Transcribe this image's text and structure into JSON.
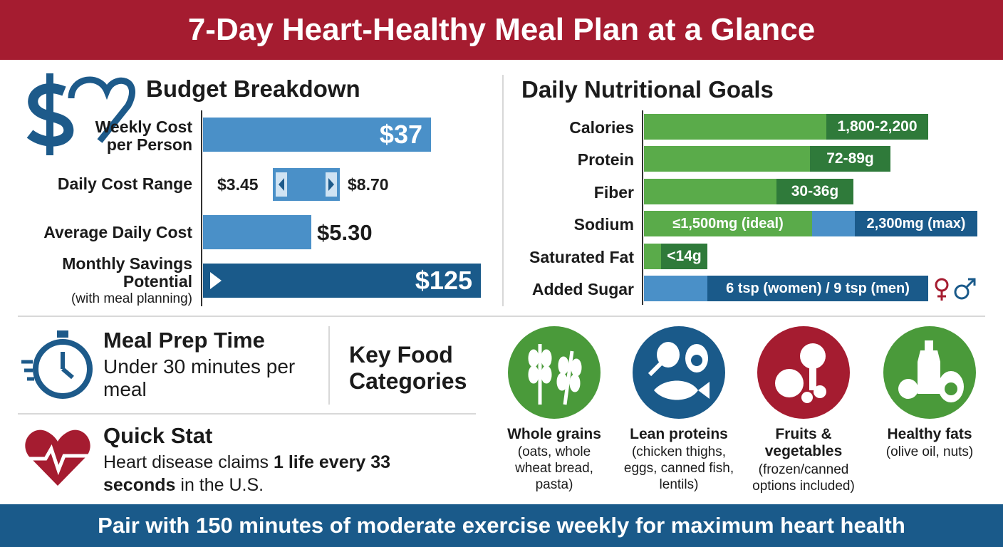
{
  "header": {
    "title": "7-Day Heart-Healthy Meal Plan at a Glance"
  },
  "budget": {
    "title": "Budget Breakdown",
    "weekly": {
      "label": "Weekly Cost per Person",
      "value": "$37"
    },
    "range": {
      "label": "Daily Cost Range",
      "low": "$3.45",
      "high": "$8.70"
    },
    "average": {
      "label": "Average Daily Cost",
      "value": "$5.30"
    },
    "savings": {
      "label": "Monthly Savings Potential",
      "note": "(with meal planning)",
      "value": "$125"
    }
  },
  "nutrition": {
    "title": "Daily Nutritional Goals",
    "rows": [
      {
        "label": "Calories",
        "value": "1,800-2,200"
      },
      {
        "label": "Protein",
        "value": "72-89g"
      },
      {
        "label": "Fiber",
        "value": "30-36g"
      },
      {
        "label": "Sodium",
        "ideal": "≤1,500mg (ideal)",
        "max": "2,300mg (max)"
      },
      {
        "label": "Saturated Fat",
        "value": "<14g"
      },
      {
        "label": "Added Sugar",
        "value": "6 tsp (women) / 9 tsp (men)"
      }
    ]
  },
  "meal_prep": {
    "title": "Meal Prep Time",
    "text": "Under 30 minutes per meal"
  },
  "quick_stat": {
    "title": "Quick Stat",
    "text_start": "Heart disease claims",
    "text_bold": "1 life every 33 seconds",
    "text_end": "in the U.S."
  },
  "food": {
    "title": "Key Food Categories",
    "items": [
      {
        "name": "Whole grains",
        "detail": "(oats, whole wheat bread, pasta)"
      },
      {
        "name": "Lean proteins",
        "detail": "(chicken thighs, eggs, canned fish, lentils)"
      },
      {
        "name": "Fruits & vegetables",
        "detail": "(frozen/canned options included)"
      },
      {
        "name": "Healthy fats",
        "detail": "(olive oil, nuts)"
      }
    ]
  },
  "footer": {
    "text": "Pair with 150 minutes of moderate exercise weekly for maximum heart health"
  }
}
